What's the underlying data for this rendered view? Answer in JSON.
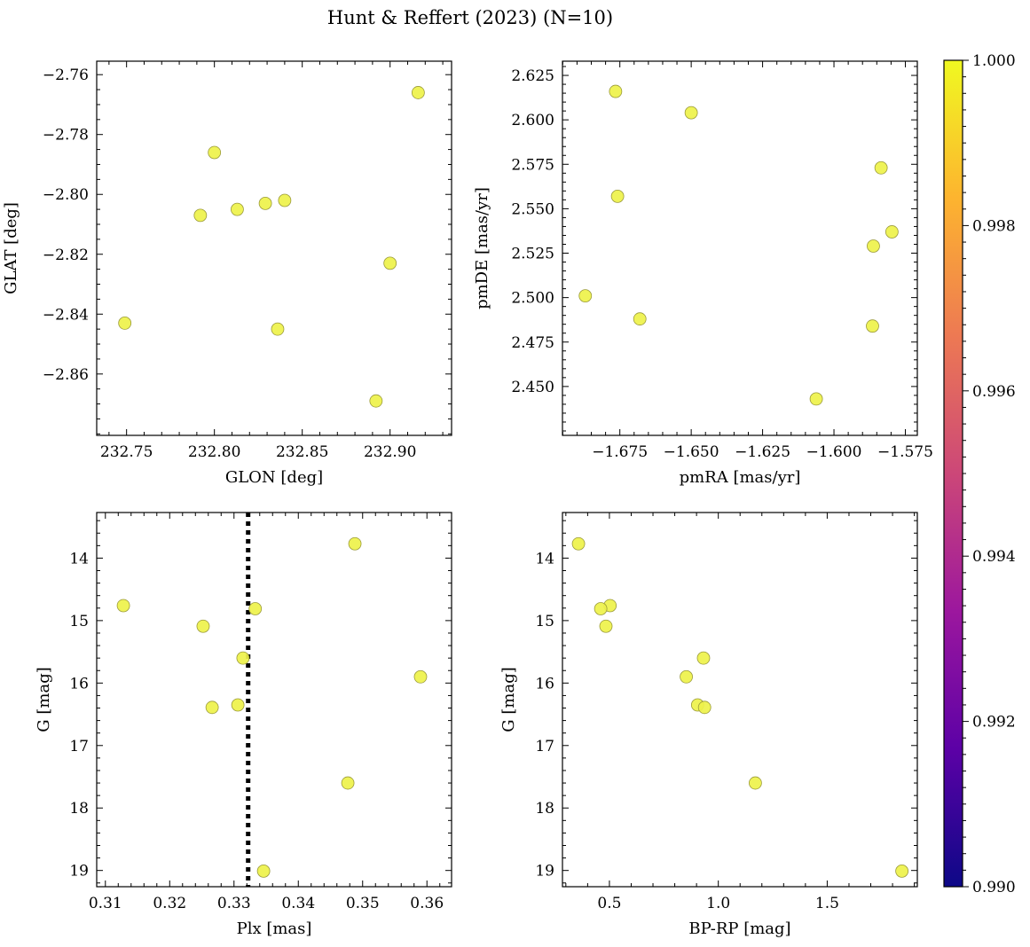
{
  "figure": {
    "title": "Hunt & Reffert (2023) (N=10)"
  },
  "colorbar": {
    "min": 0.99,
    "max": 1.0,
    "ticks": [
      0.99,
      0.992,
      0.994,
      0.996,
      0.998,
      1.0
    ],
    "tick_labels": [
      "0.990",
      "0.992",
      "0.994",
      "0.996",
      "0.998",
      "1.000"
    ],
    "colormap": "plasma",
    "stops": [
      "#0d0887",
      "#5c01a6",
      "#9c179e",
      "#cc4778",
      "#ed7953",
      "#fdb42f",
      "#f0f921"
    ]
  },
  "styles": {
    "marker_fill": "#eef24a",
    "marker_edge": "#9a9a3a",
    "dotted_line": "#000000"
  },
  "chart_data": [
    {
      "type": "scatter",
      "id": "glon-glat",
      "xlabel": "GLON [deg]",
      "ylabel": "GLAT [deg]",
      "xlim": [
        232.733,
        232.935
      ],
      "ylim": [
        -2.8805,
        -2.7555
      ],
      "xticks": [
        232.75,
        232.8,
        232.85,
        232.9
      ],
      "xtick_labels": [
        "232.75",
        "232.80",
        "232.85",
        "232.90"
      ],
      "yticks": [
        -2.86,
        -2.84,
        -2.82,
        -2.8,
        -2.78,
        -2.76
      ],
      "ytick_labels": [
        "−2.86",
        "−2.84",
        "−2.82",
        "−2.80",
        "−2.78",
        "−2.76"
      ],
      "x_minor": 0.01,
      "y_minor": 0.005,
      "invert_y": false,
      "points": {
        "x": [
          232.916,
          232.8,
          232.792,
          232.813,
          232.829,
          232.84,
          232.9,
          232.749,
          232.836,
          232.892
        ],
        "y": [
          -2.766,
          -2.786,
          -2.807,
          -2.805,
          -2.803,
          -2.802,
          -2.823,
          -2.843,
          -2.845,
          -2.869
        ]
      }
    },
    {
      "type": "scatter",
      "id": "pmra-pmde",
      "xlabel": "pmRA [mas/yr]",
      "ylabel": "pmDE [mas/yr]",
      "xlim": [
        -1.6951,
        -1.5708
      ],
      "ylim": [
        2.4225,
        2.633
      ],
      "xticks": [
        -1.675,
        -1.65,
        -1.625,
        -1.6,
        -1.575
      ],
      "xtick_labels": [
        "−1.675",
        "−1.650",
        "−1.625",
        "−1.600",
        "−1.575"
      ],
      "yticks": [
        2.45,
        2.475,
        2.5,
        2.525,
        2.55,
        2.575,
        2.6,
        2.625
      ],
      "ytick_labels": [
        "2.450",
        "2.475",
        "2.500",
        "2.525",
        "2.550",
        "2.575",
        "2.600",
        "2.625"
      ],
      "x_minor": 0.005,
      "y_minor": 0.005,
      "invert_y": false,
      "points": {
        "x": [
          -1.6765,
          -1.65,
          -1.5835,
          -1.6758,
          -1.5797,
          -1.5862,
          -1.6871,
          -1.668,
          -1.5865,
          -1.6062
        ],
        "y": [
          2.616,
          2.604,
          2.573,
          2.557,
          2.537,
          2.529,
          2.501,
          2.488,
          2.484,
          2.443
        ]
      }
    },
    {
      "type": "scatter",
      "id": "plx-g",
      "xlabel": "Plx [mas]",
      "ylabel": "G [mag]",
      "xlim": [
        0.30865,
        0.36383
      ],
      "ylim": [
        13.27,
        19.26
      ],
      "xticks": [
        0.31,
        0.32,
        0.33,
        0.34,
        0.35,
        0.36
      ],
      "xtick_labels": [
        "0.31",
        "0.32",
        "0.33",
        "0.34",
        "0.35",
        "0.36"
      ],
      "yticks": [
        14,
        15,
        16,
        17,
        18,
        19
      ],
      "ytick_labels": [
        "14",
        "15",
        "16",
        "17",
        "18",
        "19"
      ],
      "x_minor": 0.002,
      "y_minor": 0.2,
      "invert_y": true,
      "vline": 0.3322,
      "points": {
        "x": [
          0.3488,
          0.3128,
          0.3333,
          0.3252,
          0.3314,
          0.359,
          0.3306,
          0.3266,
          0.3477,
          0.3346
        ],
        "y": [
          13.77,
          14.76,
          14.81,
          15.09,
          15.6,
          15.9,
          16.35,
          16.39,
          17.6,
          19.01
        ]
      }
    },
    {
      "type": "scatter",
      "id": "bprp-g",
      "xlabel": "BP-RP [mag]",
      "ylabel": "G [mag]",
      "xlim": [
        0.2844,
        1.9138
      ],
      "ylim": [
        13.27,
        19.26
      ],
      "xticks": [
        0.5,
        1.0,
        1.5
      ],
      "xtick_labels": [
        "0.5",
        "1.0",
        "1.5"
      ],
      "yticks": [
        14,
        15,
        16,
        17,
        18,
        19
      ],
      "ytick_labels": [
        "14",
        "15",
        "16",
        "17",
        "18",
        "19"
      ],
      "x_minor": 0.1,
      "y_minor": 0.2,
      "invert_y": true,
      "points": {
        "x": [
          0.358,
          0.503,
          0.46,
          0.484,
          0.932,
          0.853,
          0.905,
          0.937,
          1.17,
          1.843
        ],
        "y": [
          13.77,
          14.76,
          14.81,
          15.09,
          15.6,
          15.9,
          16.35,
          16.39,
          17.6,
          19.01
        ]
      }
    }
  ]
}
